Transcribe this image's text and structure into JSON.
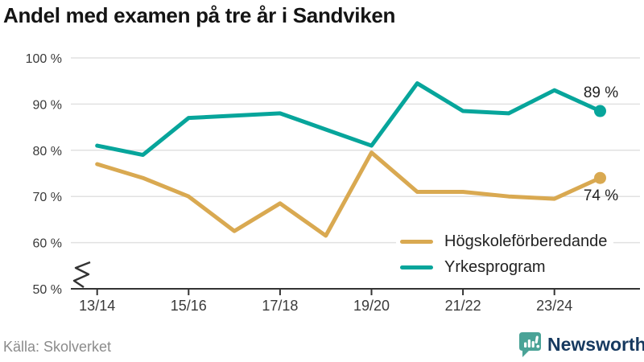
{
  "title": "Andel med examen på tre år i Sandviken",
  "source": "Källa: Skolverket",
  "brand": {
    "name": "Newsworthy",
    "icon": "speech-bubble-bar-chart",
    "icon_color": "#4aa397",
    "text_color": "#16395f"
  },
  "colors": {
    "grid": "#e1e1e1",
    "axis": "#333333",
    "tick_label": "#3a3a3a",
    "value_label": "#222222",
    "hogskoleforberedande": "#d9a951",
    "yrkesprogram": "#07a59b"
  },
  "chart_data": {
    "type": "line",
    "title": "Andel med examen på tre år i Sandviken",
    "x": [
      "13/14",
      "14/15",
      "15/16",
      "16/17",
      "17/18",
      "18/19",
      "19/20",
      "20/21",
      "21/22",
      "22/23",
      "23/24",
      "24/25"
    ],
    "x_tick_labels": [
      "13/14",
      "15/16",
      "17/18",
      "19/20",
      "21/22",
      "23/24"
    ],
    "y_ticks": [
      100,
      90,
      80,
      70,
      60,
      50
    ],
    "y_tick_labels": [
      "100 %",
      "90 %",
      "80 %",
      "70 %",
      "60 %",
      "50 %"
    ],
    "ylim": [
      50,
      100
    ],
    "axis_break": true,
    "grid": true,
    "legend_position": "inside-bottom-right",
    "series": [
      {
        "name": "Högskoleförberedande",
        "color": "#d9a951",
        "values": [
          77,
          74,
          70,
          62.5,
          68.5,
          61.5,
          79.5,
          71,
          71,
          70,
          69.5,
          74
        ],
        "end_label": "74 %",
        "end_label_side": "below"
      },
      {
        "name": "Yrkesprogram",
        "color": "#07a59b",
        "values": [
          81,
          79,
          87,
          87.5,
          88,
          84.5,
          81,
          94.5,
          88.5,
          88,
          93,
          88.5
        ],
        "end_label": "89 %",
        "end_label_side": "above"
      }
    ]
  }
}
